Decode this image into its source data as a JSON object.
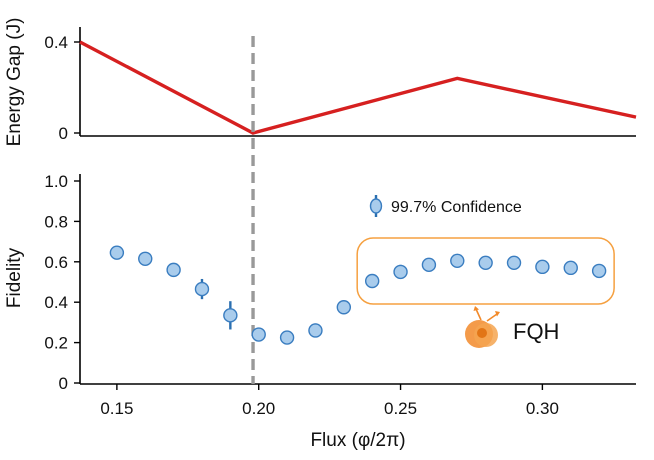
{
  "chart_data": [
    {
      "type": "line",
      "ylabel": "Energy Gap (J)",
      "xlim": [
        0.137,
        0.333
      ],
      "ylim": [
        0,
        0.4
      ],
      "yticks": [
        "0",
        "0.4"
      ],
      "series": [
        {
          "x": [
            0.137,
            0.198,
            0.27,
            0.333
          ],
          "y": [
            0.4,
            0.0,
            0.24,
            0.07
          ],
          "color": "#d62020"
        }
      ],
      "vline": {
        "x": 0.198,
        "style": "dashed",
        "color": "#999999"
      }
    },
    {
      "type": "scatter",
      "xlabel": "Flux (φ/2π)",
      "ylabel": "Fidelity",
      "xlim": [
        0.137,
        0.333
      ],
      "ylim": [
        0,
        1.0
      ],
      "xticks": [
        "0.15",
        "0.20",
        "0.25",
        "0.30"
      ],
      "yticks": [
        "0",
        "0.2",
        "0.4",
        "0.6",
        "0.8",
        "1.0"
      ],
      "legend": {
        "label": "99.7% Confidence",
        "position": "top-right"
      },
      "annotation": {
        "label": "FQH",
        "highlight_range": [
          0.24,
          0.32
        ]
      },
      "series": [
        {
          "x": [
            0.15,
            0.16,
            0.17,
            0.18,
            0.19,
            0.2,
            0.21,
            0.22,
            0.23,
            0.24,
            0.25,
            0.26,
            0.27,
            0.28,
            0.29,
            0.3,
            0.31,
            0.32
          ],
          "y": [
            0.645,
            0.615,
            0.56,
            0.465,
            0.335,
            0.24,
            0.225,
            0.26,
            0.375,
            0.505,
            0.55,
            0.585,
            0.605,
            0.595,
            0.595,
            0.575,
            0.57,
            0.555
          ],
          "err": [
            0.02,
            0.02,
            0.025,
            0.05,
            0.07,
            0.02,
            0.02,
            0.035,
            0.02,
            0.02,
            0.035,
            0.02,
            0.02,
            0.02,
            0.02,
            0.02,
            0.02,
            0.02
          ],
          "color": "#3a7dc0"
        }
      ]
    }
  ],
  "colors": {
    "gap_line": "#d62020",
    "marker_fill": "#a9ccec",
    "marker_edge": "#3a7dc0",
    "error_bar": "#2a6fb0",
    "highlight_box": "#f5a040",
    "fqh_icon": "#f28a2a"
  }
}
